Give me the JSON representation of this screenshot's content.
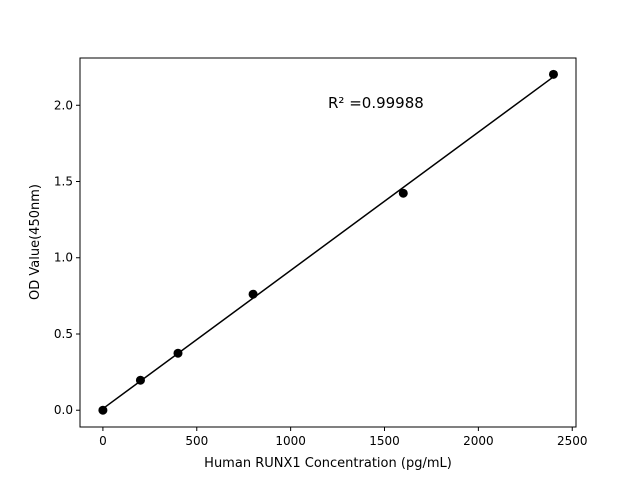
{
  "chart_data": {
    "type": "scatter",
    "title": "",
    "xlabel": "Human RUNX1 Concentration (pg/mL)",
    "ylabel": "OD Value(450nm)",
    "xlim": [
      -122,
      2520
    ],
    "ylim": [
      -0.11,
      2.31
    ],
    "xticks": [
      0,
      500,
      1000,
      1500,
      2000,
      2500
    ],
    "yticks": [
      0.0,
      0.5,
      1.0,
      1.5,
      2.0
    ],
    "ytick_labels": [
      "0.0",
      "0.5",
      "1.0",
      "1.5",
      "2.0"
    ],
    "grid": false,
    "x": [
      0,
      200,
      400,
      800,
      1600,
      2400
    ],
    "y": [
      0.0,
      0.197,
      0.374,
      0.761,
      1.423,
      2.203
    ],
    "fit": "linear",
    "annotation": "R² =0.99988",
    "color": "#000000"
  }
}
